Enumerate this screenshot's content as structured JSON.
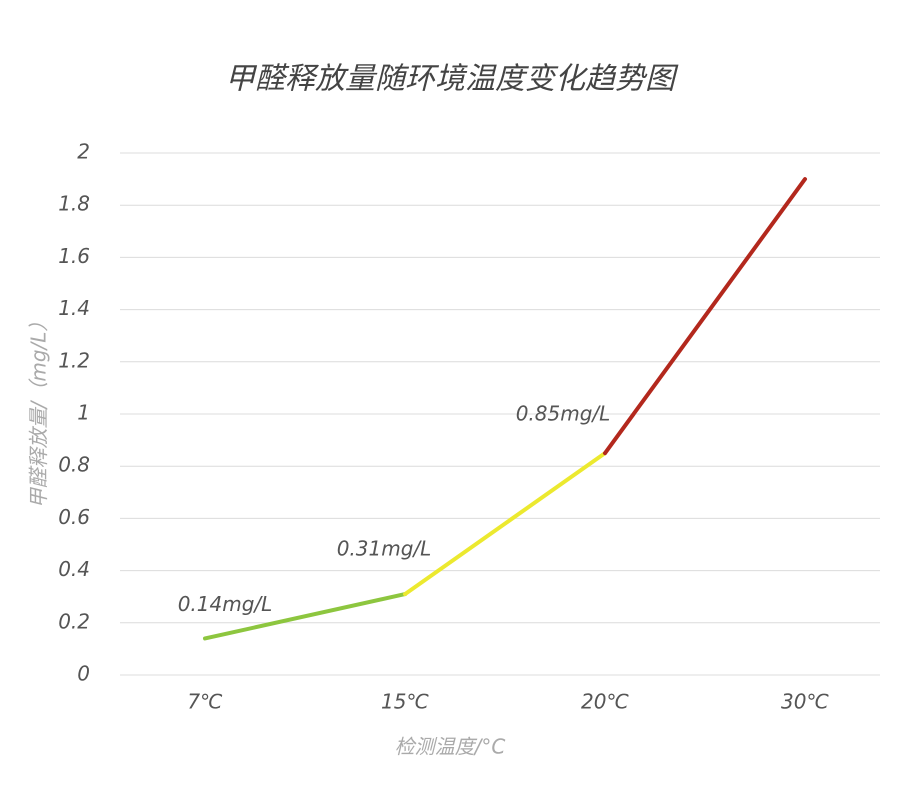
{
  "chart_data": {
    "type": "line",
    "title": "甲醛释放量随环境温度变化趋势图",
    "x_label": "检测温度/°C",
    "y_label": "甲醛释放量/（mg/L）",
    "categories": [
      "7℃",
      "15℃",
      "20℃",
      "30℃"
    ],
    "values": [
      0.14,
      0.31,
      0.85,
      1.9
    ],
    "value_labels": [
      "0.14mg/L",
      "0.31mg/L",
      "0.85mg/L",
      null
    ],
    "segment_colors": [
      "#8dc63f",
      "#ece92f",
      "#b3281d"
    ],
    "ylim": [
      0,
      2
    ],
    "yticks": [
      0,
      0.2,
      0.4,
      0.6,
      0.8,
      1,
      1.2,
      1.4,
      1.6,
      1.8,
      2
    ],
    "grid": true
  }
}
